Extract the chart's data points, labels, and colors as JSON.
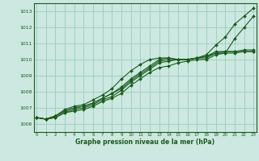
{
  "xlabel": "Graphe pression niveau de la mer (hPa)",
  "ylim": [
    1005.5,
    1013.5
  ],
  "xlim": [
    -0.3,
    23.3
  ],
  "yticks": [
    1006,
    1007,
    1008,
    1009,
    1010,
    1011,
    1012,
    1013
  ],
  "xticks": [
    0,
    1,
    2,
    3,
    4,
    5,
    6,
    7,
    8,
    9,
    10,
    11,
    12,
    13,
    14,
    15,
    16,
    17,
    18,
    19,
    20,
    21,
    22,
    23
  ],
  "bg_color": "#cce8e0",
  "grid_color": "#99ccbb",
  "line_color": "#1a5c1a",
  "series": [
    [
      1006.4,
      1006.3,
      1006.4,
      1006.7,
      1006.8,
      1006.9,
      1007.1,
      1007.4,
      1007.6,
      1007.9,
      1008.4,
      1008.8,
      1009.2,
      1009.5,
      1009.6,
      1009.8,
      1009.9,
      1010.0,
      1010.0,
      1010.3,
      1010.4,
      1011.3,
      1012.0,
      1012.7
    ],
    [
      1006.4,
      1006.3,
      1006.4,
      1006.7,
      1006.9,
      1007.0,
      1007.2,
      1007.5,
      1007.7,
      1008.1,
      1008.6,
      1009.0,
      1009.4,
      1009.8,
      1009.9,
      1010.0,
      1010.0,
      1010.1,
      1010.1,
      1010.4,
      1010.5,
      1010.5,
      1010.5,
      1010.5
    ],
    [
      1006.4,
      1006.3,
      1006.5,
      1006.8,
      1007.0,
      1007.1,
      1007.3,
      1007.6,
      1007.9,
      1008.2,
      1008.7,
      1009.1,
      1009.5,
      1009.9,
      1010.0,
      1010.0,
      1010.0,
      1010.1,
      1010.2,
      1010.4,
      1010.4,
      1010.4,
      1010.5,
      1010.5
    ],
    [
      1006.4,
      1006.3,
      1006.5,
      1006.8,
      1007.0,
      1007.1,
      1007.3,
      1007.6,
      1007.9,
      1008.3,
      1008.8,
      1009.2,
      1009.6,
      1010.0,
      1010.1,
      1010.0,
      1010.0,
      1010.1,
      1010.2,
      1010.5,
      1010.5,
      1010.5,
      1010.6,
      1010.6
    ],
    [
      1006.4,
      1006.3,
      1006.5,
      1006.9,
      1007.1,
      1007.2,
      1007.5,
      1007.8,
      1008.2,
      1008.8,
      1009.3,
      1009.7,
      1010.0,
      1010.1,
      1010.1,
      1010.0,
      1010.0,
      1010.1,
      1010.3,
      1010.9,
      1011.4,
      1012.2,
      1012.7,
      1013.2
    ]
  ],
  "marker": "D",
  "markersize": 2.0,
  "linewidth": 0.8
}
